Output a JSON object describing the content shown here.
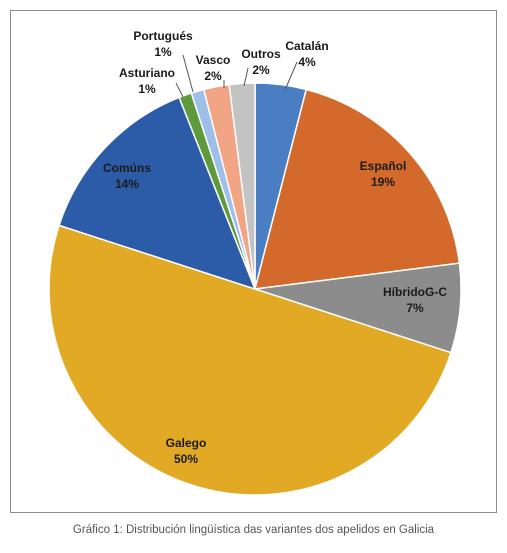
{
  "chart_data": {
    "type": "pie",
    "slices": [
      {
        "name": "Catalán",
        "value": 4,
        "label": "4%",
        "color": "#4a7ec2"
      },
      {
        "name": "Español",
        "value": 19,
        "label": "19%",
        "color": "#d3692a"
      },
      {
        "name": "HíbridoG-C",
        "value": 7,
        "label": "7%",
        "color": "#8c8c8c"
      },
      {
        "name": "Galego",
        "value": 50,
        "label": "50%",
        "color": "#e2a925"
      },
      {
        "name": "Comúns",
        "value": 14,
        "label": "14%",
        "color": "#2c5ca8"
      },
      {
        "name": "Asturiano",
        "value": 1,
        "label": "1%",
        "color": "#5e9a3b"
      },
      {
        "name": "Portugués",
        "value": 1,
        "label": "1%",
        "color": "#9ec0e8"
      },
      {
        "name": "Vasco",
        "value": 2,
        "label": "2%",
        "color": "#f2a585"
      },
      {
        "name": "Outros",
        "value": 2,
        "label": "2%",
        "color": "#c3c3c3"
      }
    ],
    "title": "",
    "legend": "none",
    "data_labels": "category-and-percent"
  },
  "caption": "Gráfico 1: Distribución lingüística das variantes dos apelidos en Galicia"
}
